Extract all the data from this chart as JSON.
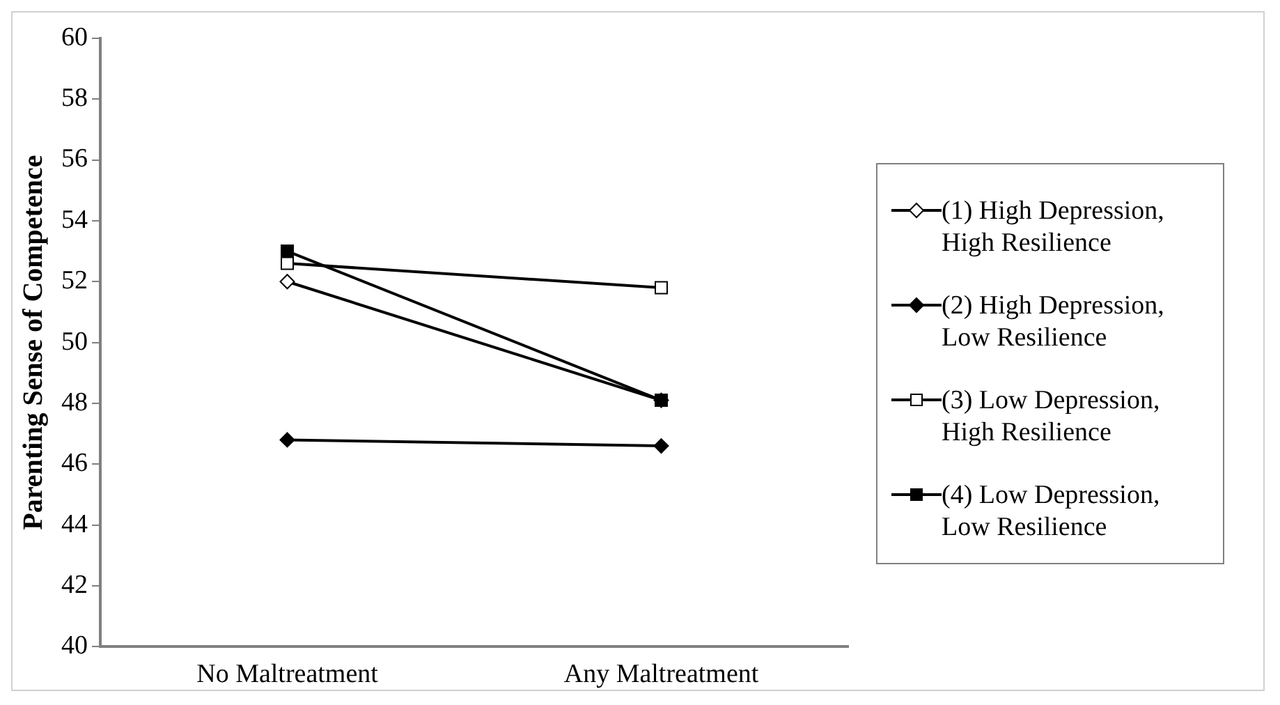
{
  "chart_data": {
    "type": "line",
    "ylabel": "Parenting Sense of Competence",
    "categories": [
      "No Maltreatment",
      "Any Maltreatment"
    ],
    "series": [
      {
        "name": "(1) High Depression, High Resilience",
        "color": "#000000",
        "marker": "diamond",
        "values": [
          52.0,
          48.1
        ]
      },
      {
        "name": "(2) High Depression, Low Resilience",
        "color": "#000000",
        "marker": "diamond",
        "values": [
          46.8,
          46.6
        ]
      },
      {
        "name": "(3) Low Depression, High Resilience",
        "color": "#000000",
        "marker": "square",
        "values": [
          52.6,
          51.8
        ]
      },
      {
        "name": "(4) Low Depression, Low Resilience",
        "color": "#000000",
        "marker": "square",
        "values": [
          53.0,
          48.1
        ]
      }
    ],
    "ylim": [
      40,
      60
    ],
    "yticks": [
      40,
      42,
      44,
      46,
      48,
      50,
      52,
      54,
      56,
      58,
      60
    ],
    "grid": false,
    "legend": "right",
    "line_style": "solid"
  }
}
